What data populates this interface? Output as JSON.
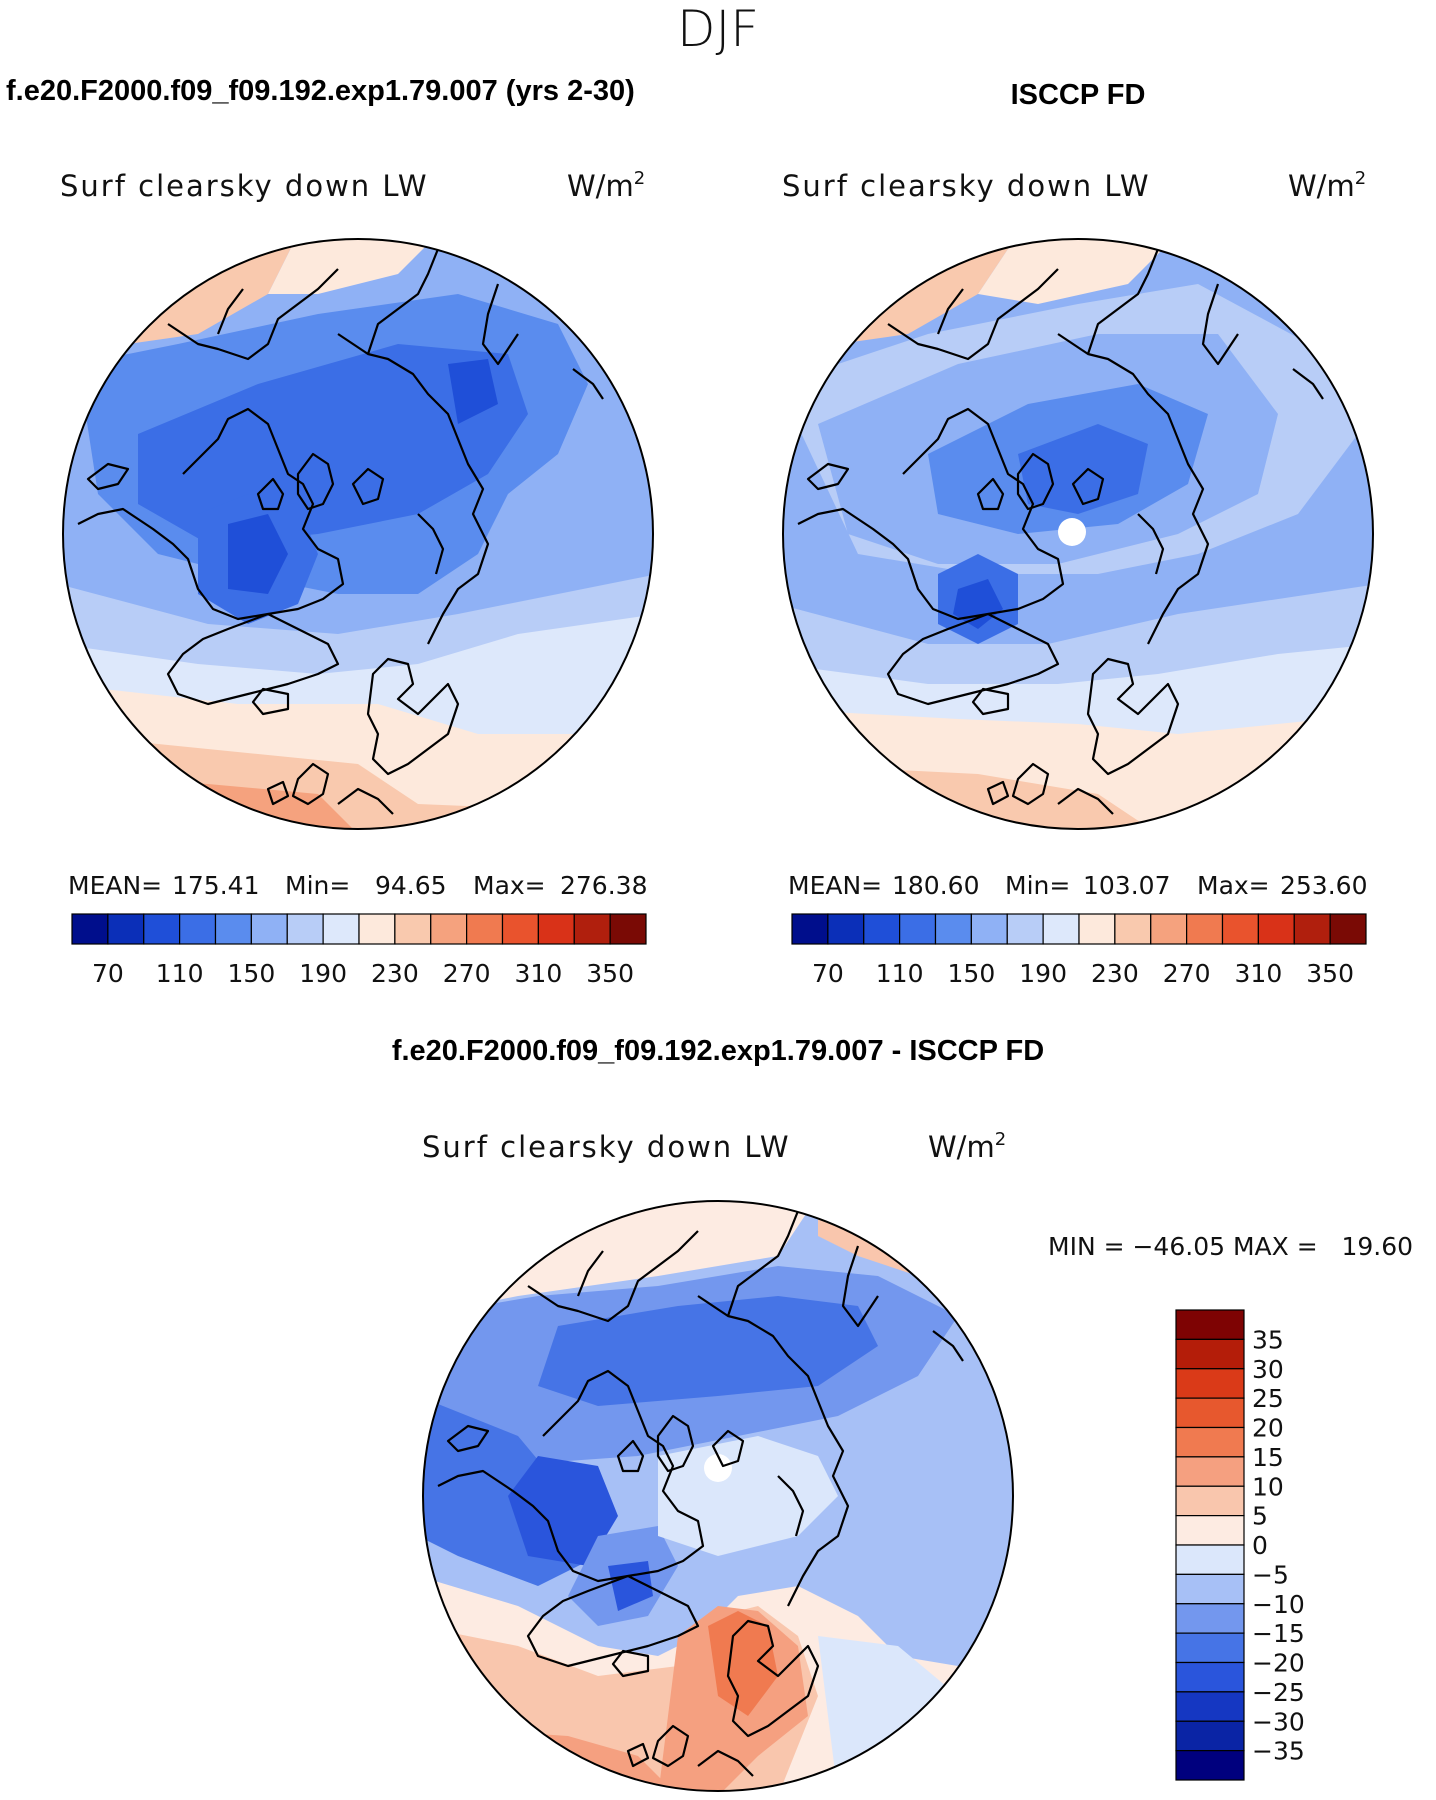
{
  "season_title": "DJF",
  "colors": {
    "abs_scale": [
      "#000e8c",
      "#0b2fb8",
      "#1f4fd8",
      "#3b6ee6",
      "#5a8cee",
      "#8fb1f5",
      "#b8cdf7",
      "#dde8fb",
      "#fde9dc",
      "#f9c9ae",
      "#f5a27e",
      "#f07a50",
      "#e9532d",
      "#d93218",
      "#b01f0d",
      "#7a0a05"
    ],
    "diff_scale": [
      "#00007e",
      "#0a24a5",
      "#1537c2",
      "#2a55dc",
      "#4674e6",
      "#7397ee",
      "#a7c0f6",
      "#dbe7fb",
      "#fdebe2",
      "#f9c6ad",
      "#f5a080",
      "#f07a50",
      "#e7582e",
      "#da3a18",
      "#b41d09",
      "#7e0303"
    ]
  },
  "panels": [
    {
      "title": "f.e20.F2000.f09_f09.192.exp1.79.007 (yrs 2-30)",
      "subtitle": "Surf clearsky down LW",
      "units": "W/m",
      "units_sup": "2",
      "stats": {
        "mean_label": "MEAN=",
        "mean": "175.41",
        "min_label": "Min=",
        "min": "94.65",
        "max_label": "Max=",
        "max": "276.38"
      },
      "colorbar_ticks": [
        "70",
        "110",
        "150",
        "190",
        "230",
        "270",
        "310",
        "350"
      ]
    },
    {
      "title": "ISCCP FD",
      "subtitle": "Surf clearsky down LW",
      "units": "W/m",
      "units_sup": "2",
      "stats": {
        "mean_label": "MEAN=",
        "mean": "180.60",
        "min_label": "Min=",
        "min": "103.07",
        "max_label": "Max=",
        "max": "253.60"
      },
      "colorbar_ticks": [
        "70",
        "110",
        "150",
        "190",
        "230",
        "270",
        "310",
        "350"
      ]
    }
  ],
  "diff_panel": {
    "title": "f.e20.F2000.f09_f09.192.exp1.79.007 - ISCCP FD",
    "subtitle": "Surf clearsky down LW",
    "units": "W/m",
    "units_sup": "2",
    "minmax": "MIN = −46.05 MAX =   19.60",
    "colorbar_ticks": [
      "35",
      "30",
      "25",
      "20",
      "15",
      "10",
      "5",
      "0",
      "−5",
      "−10",
      "−15",
      "−20",
      "−25",
      "−30",
      "−35"
    ]
  },
  "chart_data": [
    {
      "type": "heatmap",
      "title": "f.e20.F2000.f09_f09.192.exp1.79.007 (yrs 2-30)",
      "variable": "Surf clearsky down LW",
      "units": "W/m2",
      "projection": "north polar stereographic",
      "season": "DJF",
      "mean": 175.41,
      "min": 94.65,
      "max": 276.38,
      "contour_levels": [
        70,
        90,
        110,
        130,
        150,
        170,
        190,
        210,
        230,
        250,
        270,
        290,
        310,
        330,
        350
      ]
    },
    {
      "type": "heatmap",
      "title": "ISCCP FD",
      "variable": "Surf clearsky down LW",
      "units": "W/m2",
      "projection": "north polar stereographic",
      "season": "DJF",
      "mean": 180.6,
      "min": 103.07,
      "max": 253.6,
      "contour_levels": [
        70,
        90,
        110,
        130,
        150,
        170,
        190,
        210,
        230,
        250,
        270,
        290,
        310,
        330,
        350
      ]
    },
    {
      "type": "heatmap",
      "title": "f.e20.F2000.f09_f09.192.exp1.79.007 - ISCCP FD",
      "variable": "Surf clearsky down LW",
      "units": "W/m2",
      "projection": "north polar stereographic",
      "season": "DJF",
      "min": -46.05,
      "max": 19.6,
      "contour_levels": [
        -35,
        -30,
        -25,
        -20,
        -15,
        -10,
        -5,
        0,
        5,
        10,
        15,
        20,
        25,
        30,
        35
      ]
    }
  ]
}
